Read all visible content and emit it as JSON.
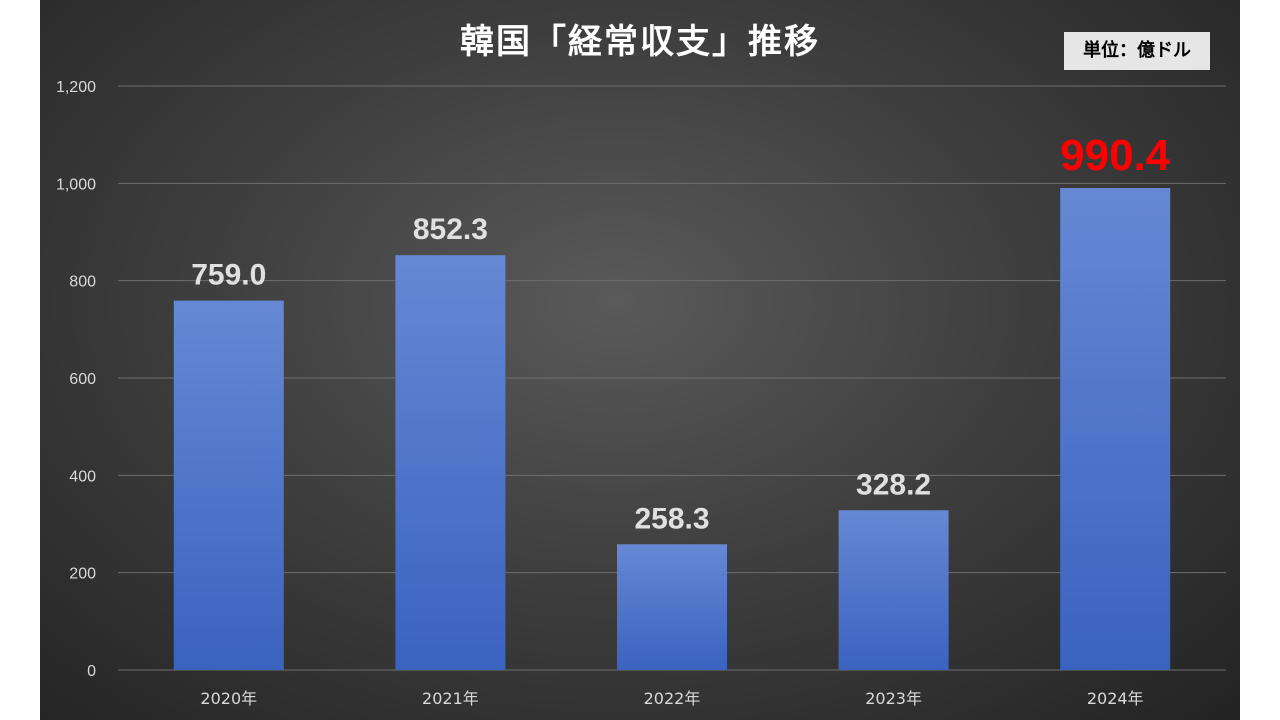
{
  "chart_data": {
    "type": "bar",
    "title": "韓国「経常収支」推移",
    "unit_label": "単位：億ドル",
    "categories": [
      "2020年",
      "2021年",
      "2022年",
      "2023年",
      "2024年"
    ],
    "values": [
      759.0,
      852.3,
      258.3,
      328.2,
      990.4
    ],
    "data_labels": [
      "759.0",
      "852.3",
      "258.3",
      "328.2",
      "990.4"
    ],
    "highlight_index": 4,
    "ylim": [
      0,
      1200
    ],
    "y_ticks": [
      0,
      200,
      400,
      600,
      800,
      1000,
      1200
    ],
    "y_tick_labels": [
      "0",
      "200",
      "400",
      "600",
      "800",
      "1,000",
      "1,200"
    ],
    "grid": true,
    "colors": {
      "bar_top": "#6688d4",
      "bar_bottom": "#3a63c0",
      "label": "#e0e0e0",
      "highlight_label": "#ff0000",
      "grid": "#6e6e6e"
    }
  }
}
